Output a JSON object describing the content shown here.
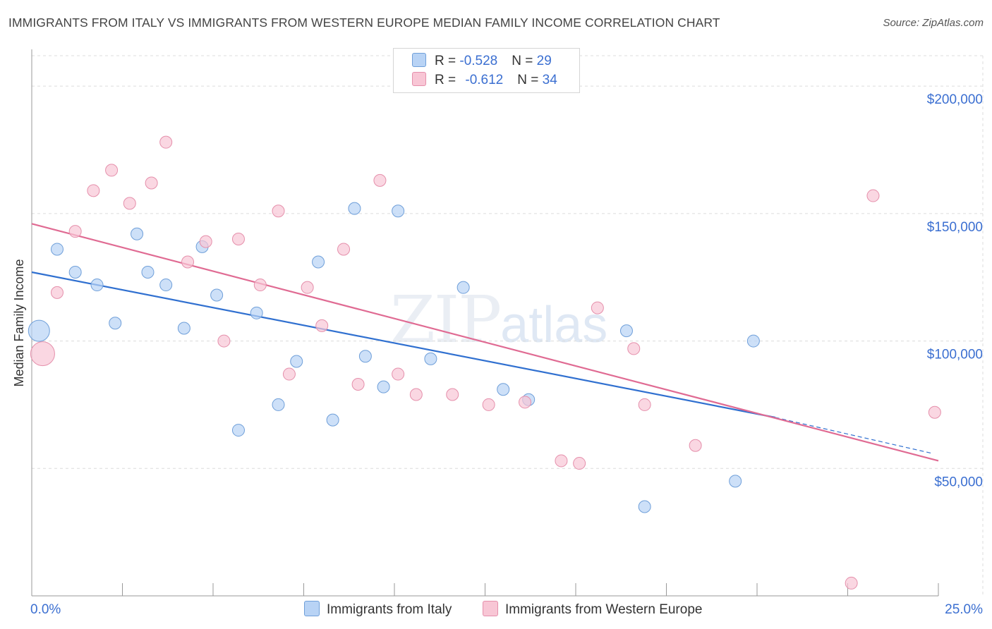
{
  "title": "IMMIGRANTS FROM ITALY VS IMMIGRANTS FROM WESTERN EUROPE MEDIAN FAMILY INCOME CORRELATION CHART",
  "source": "Source: ZipAtlas.com",
  "watermark": {
    "bold": "ZIP",
    "light": "atlas"
  },
  "colors": {
    "italy_fill": "#b8d3f5",
    "italy_stroke": "#6f9fd9",
    "italy_line": "#3070d0",
    "weu_fill": "#f8c6d5",
    "weu_stroke": "#e58fab",
    "weu_line": "#e06b93",
    "axis_label": "#3b6fd1",
    "grid": "#dcdcdc"
  },
  "legend": {
    "italy": {
      "r_label": "R = ",
      "r_value": "-0.528",
      "n_label": "N = ",
      "n_value": "29"
    },
    "weu": {
      "r_label": "R = ",
      "r_value": "-0.612",
      "n_label": "N = ",
      "n_value": "34"
    }
  },
  "chart_data": {
    "type": "scatter",
    "title": "IMMIGRANTS FROM ITALY VS IMMIGRANTS FROM WESTERN EUROPE MEDIAN FAMILY INCOME CORRELATION CHART",
    "xlabel": "",
    "ylabel": "Median Family Income",
    "xlim": [
      0,
      25
    ],
    "ylim": [
      0,
      210000
    ],
    "x_tick_labels": [
      "0.0%",
      "25.0%"
    ],
    "y_ticks": [
      50000,
      100000,
      150000,
      200000
    ],
    "y_tick_labels": [
      "$50,000",
      "$100,000",
      "$150,000",
      "$200,000"
    ],
    "series": [
      {
        "name": "Immigrants from Italy",
        "points": [
          {
            "x": 0.2,
            "y": 104000,
            "size": "large"
          },
          {
            "x": 0.7,
            "y": 136000
          },
          {
            "x": 1.2,
            "y": 127000
          },
          {
            "x": 1.8,
            "y": 122000
          },
          {
            "x": 2.3,
            "y": 107000
          },
          {
            "x": 2.9,
            "y": 142000
          },
          {
            "x": 3.2,
            "y": 127000
          },
          {
            "x": 3.7,
            "y": 122000
          },
          {
            "x": 4.2,
            "y": 105000
          },
          {
            "x": 4.7,
            "y": 137000
          },
          {
            "x": 5.1,
            "y": 118000
          },
          {
            "x": 5.7,
            "y": 65000
          },
          {
            "x": 6.2,
            "y": 111000
          },
          {
            "x": 6.8,
            "y": 75000
          },
          {
            "x": 7.3,
            "y": 92000
          },
          {
            "x": 7.9,
            "y": 131000
          },
          {
            "x": 8.3,
            "y": 69000
          },
          {
            "x": 8.9,
            "y": 152000
          },
          {
            "x": 9.2,
            "y": 94000
          },
          {
            "x": 9.7,
            "y": 82000
          },
          {
            "x": 10.1,
            "y": 151000
          },
          {
            "x": 11.0,
            "y": 93000
          },
          {
            "x": 11.9,
            "y": 121000
          },
          {
            "x": 13.0,
            "y": 81000
          },
          {
            "x": 13.7,
            "y": 77000
          },
          {
            "x": 16.4,
            "y": 104000
          },
          {
            "x": 16.9,
            "y": 35000
          },
          {
            "x": 19.4,
            "y": 45000
          },
          {
            "x": 19.9,
            "y": 100000
          }
        ],
        "trend": {
          "x0": 0,
          "y0": 127000,
          "x1": 20.5,
          "y1": 70000,
          "dash_x1": 24.8,
          "dash_y1": 56000
        }
      },
      {
        "name": "Immigrants from Western Europe",
        "points": [
          {
            "x": 0.3,
            "y": 95000,
            "size": "large"
          },
          {
            "x": 0.7,
            "y": 119000
          },
          {
            "x": 1.2,
            "y": 143000
          },
          {
            "x": 1.7,
            "y": 159000
          },
          {
            "x": 2.2,
            "y": 167000
          },
          {
            "x": 2.7,
            "y": 154000
          },
          {
            "x": 3.3,
            "y": 162000
          },
          {
            "x": 3.7,
            "y": 178000
          },
          {
            "x": 4.3,
            "y": 131000
          },
          {
            "x": 4.8,
            "y": 139000
          },
          {
            "x": 5.3,
            "y": 100000
          },
          {
            "x": 5.7,
            "y": 140000
          },
          {
            "x": 6.3,
            "y": 122000
          },
          {
            "x": 6.8,
            "y": 151000
          },
          {
            "x": 7.1,
            "y": 87000
          },
          {
            "x": 7.6,
            "y": 121000
          },
          {
            "x": 8.0,
            "y": 106000
          },
          {
            "x": 8.6,
            "y": 136000
          },
          {
            "x": 9.0,
            "y": 83000
          },
          {
            "x": 9.6,
            "y": 163000
          },
          {
            "x": 10.1,
            "y": 87000
          },
          {
            "x": 10.6,
            "y": 79000
          },
          {
            "x": 11.6,
            "y": 79000
          },
          {
            "x": 12.6,
            "y": 75000
          },
          {
            "x": 13.6,
            "y": 76000
          },
          {
            "x": 14.6,
            "y": 53000
          },
          {
            "x": 15.1,
            "y": 52000
          },
          {
            "x": 15.6,
            "y": 113000
          },
          {
            "x": 16.6,
            "y": 97000
          },
          {
            "x": 16.9,
            "y": 75000
          },
          {
            "x": 18.3,
            "y": 59000
          },
          {
            "x": 22.6,
            "y": 5000
          },
          {
            "x": 23.2,
            "y": 157000
          },
          {
            "x": 24.9,
            "y": 72000
          }
        ],
        "trend": {
          "x0": 0,
          "y0": 146000,
          "x1": 25,
          "y1": 53000
        }
      }
    ]
  },
  "bottom_legend": {
    "italy_label": "Immigrants from Italy",
    "weu_label": "Immigrants from Western Europe"
  }
}
